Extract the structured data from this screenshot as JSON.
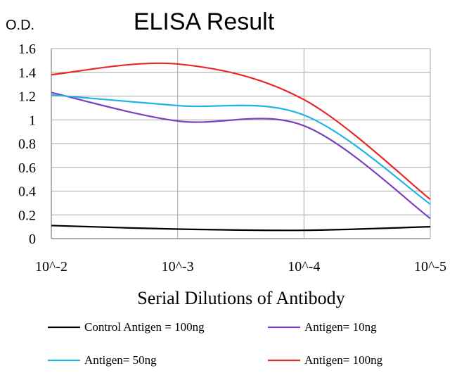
{
  "chart_data": {
    "type": "line",
    "title": "ELISA Result",
    "ylabel": "O.D.",
    "xlabel": "Serial Dilutions of Antibody",
    "categories": [
      "10^-2",
      "10^-3",
      "10^-4",
      "10^-5"
    ],
    "ylim": [
      0,
      1.6
    ],
    "yticks": [
      "0",
      "0.2",
      "0.4",
      "0.6",
      "0.8",
      "1",
      "1.2",
      "1.4",
      "1.6"
    ],
    "grid": true,
    "legend_position": "bottom",
    "series": [
      {
        "name": "Control Antigen = 100ng",
        "color": "#000000",
        "values": [
          0.11,
          0.08,
          0.07,
          0.1
        ]
      },
      {
        "name": "Antigen= 10ng",
        "color": "#7b3fbf",
        "values": [
          1.23,
          0.99,
          0.95,
          0.17
        ]
      },
      {
        "name": "Antigen= 50ng",
        "color": "#1fb3e8",
        "values": [
          1.21,
          1.12,
          1.04,
          0.29
        ]
      },
      {
        "name": "Antigen= 100ng",
        "color": "#e8262a",
        "values": [
          1.38,
          1.47,
          1.17,
          0.33
        ]
      }
    ]
  }
}
